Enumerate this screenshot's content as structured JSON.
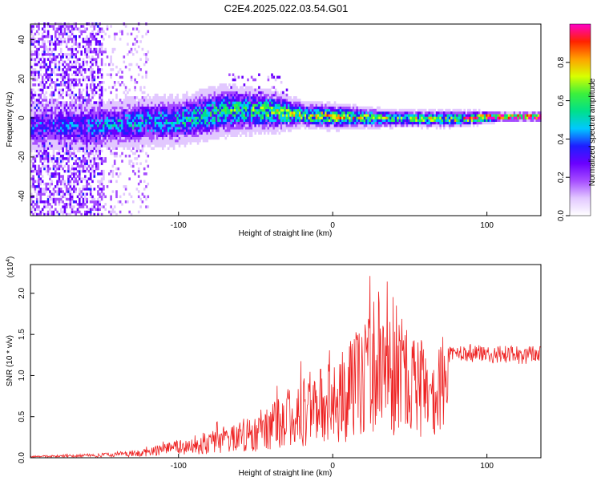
{
  "title": "C2E4.2025.022.03.54.G01",
  "colors": {
    "snr_line": "#ee2222",
    "frame": "#000000",
    "colormap": [
      "#ffffff",
      "#e2c8ff",
      "#a64dff",
      "#6a00ff",
      "#1e1eff",
      "#00c8ff",
      "#00e08a",
      "#3cf03c",
      "#d8ff00",
      "#ffa000",
      "#ff2200",
      "#ff00c8"
    ]
  },
  "chart_data": [
    {
      "type": "heatmap",
      "xlabel": "Height of straight line (km)",
      "ylabel": "Frequency (Hz)",
      "xlim": [
        -196,
        135
      ],
      "ylim": [
        -50,
        48
      ],
      "xticks": [
        -100,
        0,
        100
      ],
      "yticks": [
        -40,
        -20,
        0,
        20,
        40
      ],
      "colorbar": {
        "label": "Normalized spectral amplitude",
        "range": [
          0.0,
          1.0
        ],
        "ticks": [
          0.0,
          0.2,
          0.4,
          0.6,
          0.8
        ]
      },
      "ridge": [
        {
          "x": -190,
          "center": -5,
          "width": 6,
          "amp": 0.3
        },
        {
          "x": -160,
          "center": -5,
          "width": 6,
          "amp": 0.35
        },
        {
          "x": -130,
          "center": -3,
          "width": 6,
          "amp": 0.4
        },
        {
          "x": -100,
          "center": -2,
          "width": 6,
          "amp": 0.45
        },
        {
          "x": -70,
          "center": 3,
          "width": 6,
          "amp": 0.5
        },
        {
          "x": -40,
          "center": 3,
          "width": 5,
          "amp": 0.55
        },
        {
          "x": -20,
          "center": 1,
          "width": 3,
          "amp": 0.6
        },
        {
          "x": 0,
          "center": 0,
          "width": 3,
          "amp": 0.65
        },
        {
          "x": 40,
          "center": -1,
          "width": 2,
          "amp": 0.55
        },
        {
          "x": 80,
          "center": -1,
          "width": 2,
          "amp": 0.6
        },
        {
          "x": 110,
          "center": 0,
          "width": 1,
          "amp": 0.95
        },
        {
          "x": 135,
          "center": 0,
          "width": 1,
          "amp": 0.95
        }
      ]
    },
    {
      "type": "line",
      "xlabel": "Height of straight line (km)",
      "ylabel": "SNR (10 * v/v)",
      "y_multiplier": "(x10",
      "y_multiplier_exp": "4",
      "xlim": [
        -196,
        135
      ],
      "ylim": [
        0.0,
        2.35
      ],
      "xticks": [
        -100,
        0,
        100
      ],
      "yticks": [
        "0.0",
        "0.5",
        "1.0",
        "1.5",
        "2.0"
      ],
      "envelope": [
        {
          "x": -196,
          "y": 0.02
        },
        {
          "x": -150,
          "y": 0.05
        },
        {
          "x": -120,
          "y": 0.1
        },
        {
          "x": -100,
          "y": 0.2
        },
        {
          "x": -80,
          "y": 0.3
        },
        {
          "x": -60,
          "y": 0.4
        },
        {
          "x": -40,
          "y": 0.6
        },
        {
          "x": -20,
          "y": 0.9
        },
        {
          "x": 0,
          "y": 1.1
        },
        {
          "x": 20,
          "y": 1.5
        },
        {
          "x": 30,
          "y": 1.9
        },
        {
          "x": 40,
          "y": 1.8
        },
        {
          "x": 50,
          "y": 1.4
        },
        {
          "x": 65,
          "y": 1.2
        },
        {
          "x": 80,
          "y": 1.3
        },
        {
          "x": 100,
          "y": 1.25
        },
        {
          "x": 135,
          "y": 1.25
        }
      ]
    }
  ]
}
